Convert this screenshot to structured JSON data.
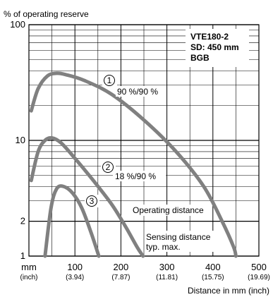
{
  "chart_data": {
    "type": "line",
    "ylabel": "% of operating reserve",
    "xlabel": "Distance in mm (inch)",
    "x_unit_main": "mm",
    "x_unit_sub": "(inch)",
    "x_scale": "linear",
    "y_scale": "log",
    "xlim": [
      0,
      500
    ],
    "ylim": [
      1,
      100
    ],
    "x_ticks": [
      {
        "value": 100,
        "label": "100",
        "sub": "(3.94)"
      },
      {
        "value": 200,
        "label": "200",
        "sub": "(7.87)"
      },
      {
        "value": 300,
        "label": "300",
        "sub": "(11.81)"
      },
      {
        "value": 400,
        "label": "400",
        "sub": "(15.75)"
      },
      {
        "value": 500,
        "label": "500",
        "sub": "(19.69)"
      }
    ],
    "y_ticks": [
      {
        "value": 100,
        "label": "100"
      },
      {
        "value": 10,
        "label": "10"
      },
      {
        "value": 2,
        "label": "2"
      },
      {
        "value": 1,
        "label": "1"
      }
    ],
    "info_box": [
      "VTE180-2",
      "SD: 450 mm",
      "BGB"
    ],
    "series": [
      {
        "name": "90 %/90 %",
        "marker": "①",
        "x": [
          5,
          20,
          40,
          60,
          80,
          120,
          180,
          250,
          320,
          380,
          420,
          445,
          450
        ],
        "y": [
          18,
          28,
          36,
          38,
          37,
          33,
          25,
          15,
          8,
          4,
          2,
          1.2,
          1
        ]
      },
      {
        "name": "18 %/90 %",
        "marker": "②",
        "x": [
          5,
          20,
          35,
          50,
          70,
          100,
          140,
          180,
          210,
          235,
          248
        ],
        "y": [
          4.5,
          8,
          10,
          10.5,
          9.5,
          7,
          4.5,
          2.8,
          1.8,
          1.2,
          1
        ]
      },
      {
        "name": "",
        "marker": "③",
        "x": [
          35,
          48,
          60,
          75,
          95,
          115,
          135,
          152
        ],
        "y": [
          1,
          2.6,
          3.8,
          4,
          3.5,
          2.6,
          1.6,
          1
        ]
      }
    ],
    "annotations": {
      "operating": "Operating distance",
      "sensing_1": "Sensing distance",
      "sensing_2": "typ. max."
    },
    "grid": true
  }
}
